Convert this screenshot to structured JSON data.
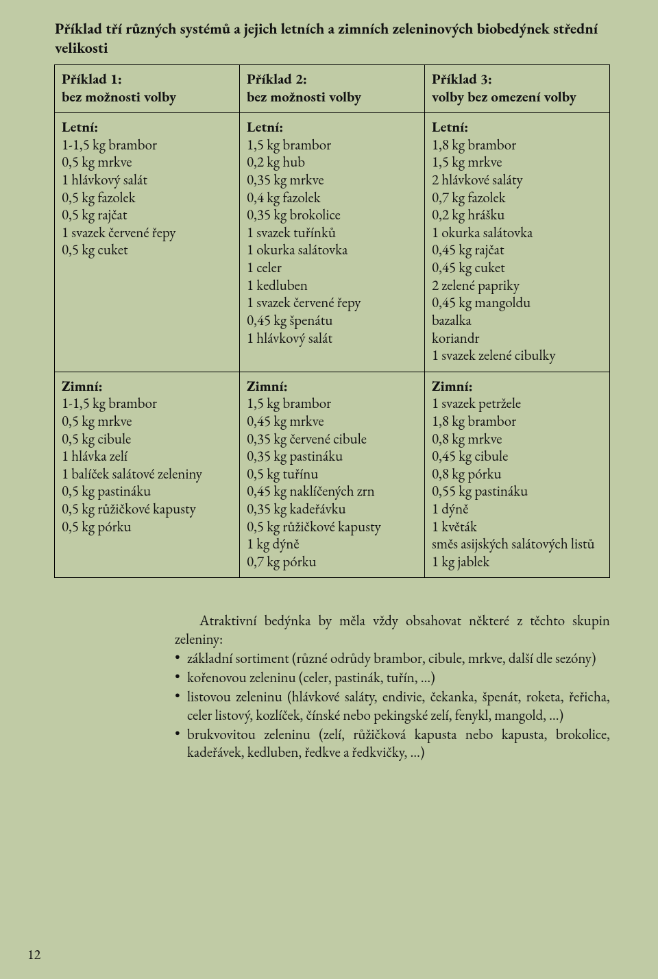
{
  "title": "Příklad tří různých systémů a jejich letních a zimních zeleninových biobedýnek střední velikosti",
  "columns": [
    {
      "header": "Příklad 1:\nbez možnosti volby",
      "summer_label": "Letní:",
      "summer": [
        "1-1,5 kg brambor",
        "0,5 kg mrkve",
        "1 hlávkový salát",
        "0,5 kg fazolek",
        "0,5 kg rajčat",
        "1 svazek červené řepy",
        "0,5 kg cuket"
      ],
      "winter_label": "Zimní:",
      "winter": [
        "1-1,5 kg brambor",
        "0,5 kg mrkve",
        "0,5 kg cibule",
        "1 hlávka zelí",
        "1 balíček salátové zeleniny",
        "0,5 kg pastináku",
        "0,5 kg růžičkové kapusty",
        "0,5 kg pórku"
      ]
    },
    {
      "header": "Příklad 2:\nbez možnosti volby",
      "summer_label": "Letní:",
      "summer": [
        "1,5 kg brambor",
        "0,2 kg hub",
        "0,35 kg mrkve",
        "0,4 kg fazolek",
        "0,35 kg brokolice",
        "1 svazek tuřínků",
        "1 okurka salátovka",
        "1 celer",
        "1 kedluben",
        "1 svazek červené řepy",
        "0,45 kg špenátu",
        "1 hlávkový salát"
      ],
      "winter_label": "Zimní:",
      "winter": [
        "1,5 kg brambor",
        "0,45 kg mrkve",
        "0,35 kg červené cibule",
        "0,35 kg pastináku",
        "0,5 kg tuřínu",
        "0,45 kg naklíčených zrn",
        "0,35 kg kadeřávku",
        "0,5 kg růžičkové kapusty",
        "1 kg dýně",
        "0,7 kg pórku"
      ]
    },
    {
      "header": "Příklad 3:\nvolby bez omezení volby",
      "summer_label": "Letní:",
      "summer": [
        "1,8 kg brambor",
        "1,5 kg mrkve",
        "2 hlávkové saláty",
        "0,7 kg fazolek",
        "0,2 kg hrášku",
        "1 okurka salátovka",
        "0,45 kg rajčat",
        "0,45 kg cuket",
        "2 zelené papriky",
        "0,45 kg mangoldu",
        "bazalka",
        "koriandr",
        "1 svazek zelené cibulky"
      ],
      "winter_label": "Zimní:",
      "winter": [
        "1 svazek petržele",
        "1,8 kg brambor",
        "0,8 kg mrkve",
        "0,45 kg cibule",
        "0,8 kg pórku",
        "0,55 kg pastináku",
        "1 dýně",
        "1 květák",
        "směs asijských salátových listů",
        "1 kg jablek"
      ]
    }
  ],
  "body_intro": "Atraktivní bedýnka by měla vždy obsahovat některé z těchto skupin zeleniny:",
  "bullets": [
    "základní sortiment (různé odrůdy brambor, cibule, mrkve, další dle sezóny)",
    "kořenovou zeleninu (celer, pastinák, tuřín, …)",
    "listovou zeleninu (hlávkové saláty, endivie, čekanka, špenát, roketa, řeřicha, celer listový, kozlíček, čínské nebo pekingské zelí, fenykl, mangold, …)",
    "brukvovitou zeleninu (zelí, růžičková kapusta nebo kapusta, brokolice, kadeřávek, kedluben, ředkve a ředkvičky, …)"
  ],
  "page_number": "12"
}
